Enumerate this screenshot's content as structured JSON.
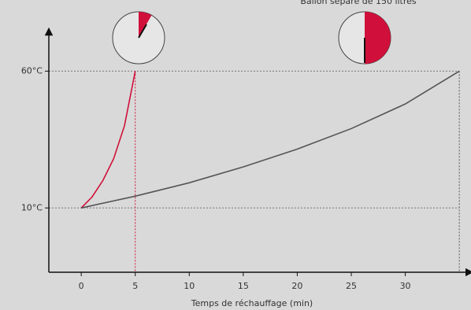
{
  "chart_data": {
    "type": "line",
    "annotation": "Ballon séparé de 150 litres",
    "x_label": "Temps de réchauffage (min)",
    "series": [
      {
        "color": "#d0103a",
        "x": [
          0,
          1,
          2,
          3,
          4,
          5
        ],
        "values": [
          10,
          14,
          20,
          28,
          40,
          60
        ]
      },
      {
        "color": "#555555",
        "x": [
          0,
          5,
          10,
          15,
          20,
          25,
          30,
          35
        ],
        "values": [
          10,
          14.3,
          19.2,
          25,
          31.5,
          39,
          48,
          60
        ]
      }
    ],
    "xlim": [
      -3,
      35.5
    ],
    "ylim": [
      -13.5,
      74.5
    ],
    "xticks": [
      0,
      5,
      10,
      15,
      20,
      25,
      30
    ],
    "yticks": [
      {
        "value": 10,
        "label": "10°C"
      },
      {
        "value": 60,
        "label": "60°C"
      }
    ]
  }
}
